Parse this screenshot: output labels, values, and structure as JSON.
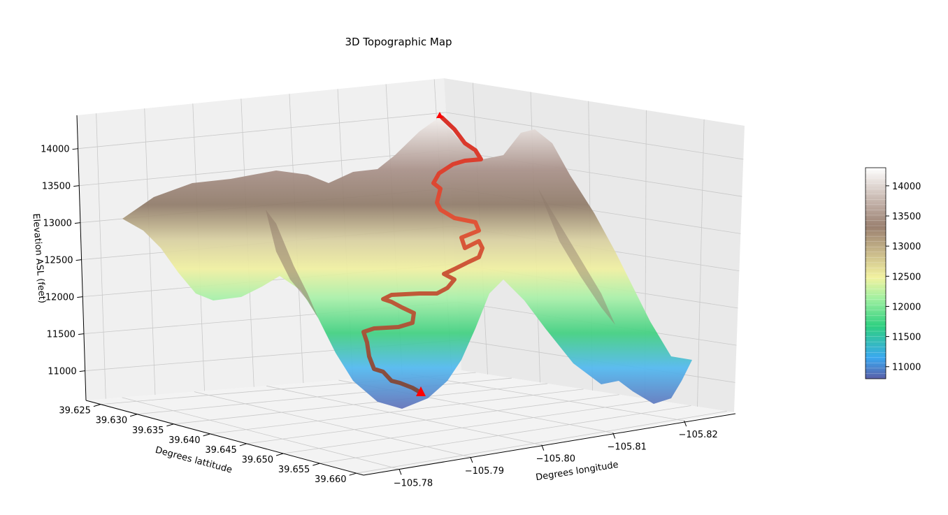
{
  "chart_data": {
    "type": "surface3d",
    "title": "3D Topographic Map",
    "xlabel": "Degrees lattitude",
    "ylabel": "Degrees longitude",
    "zlabel": "Elevation ASL (feet)",
    "xlim": [
      39.623,
      39.661
    ],
    "ylim": [
      -105.775,
      -105.827
    ],
    "zlim": [
      10600,
      14450
    ],
    "x_ticks": [
      "39.625",
      "39.630",
      "39.635",
      "39.640",
      "39.645",
      "39.650",
      "39.655",
      "39.660"
    ],
    "y_ticks": [
      "−105.78",
      "−105.79",
      "−105.80",
      "−105.81",
      "−105.82"
    ],
    "z_ticks": [
      "11000",
      "11500",
      "12000",
      "12500",
      "13000",
      "13500",
      "14000"
    ],
    "colorbar": {
      "ticks": [
        "11000",
        "11500",
        "12000",
        "12500",
        "13000",
        "13500",
        "14000"
      ],
      "min": 10800,
      "max": 14300,
      "colormap": "terrain"
    },
    "trail": {
      "color": "#e03020",
      "start": {
        "lat": 39.658,
        "lon": -105.793,
        "elevation": 11050
      },
      "end": {
        "lat": 39.634,
        "lon": -105.816,
        "elevation": 14250
      },
      "marker_color": "#ff0000"
    },
    "grid": true
  }
}
